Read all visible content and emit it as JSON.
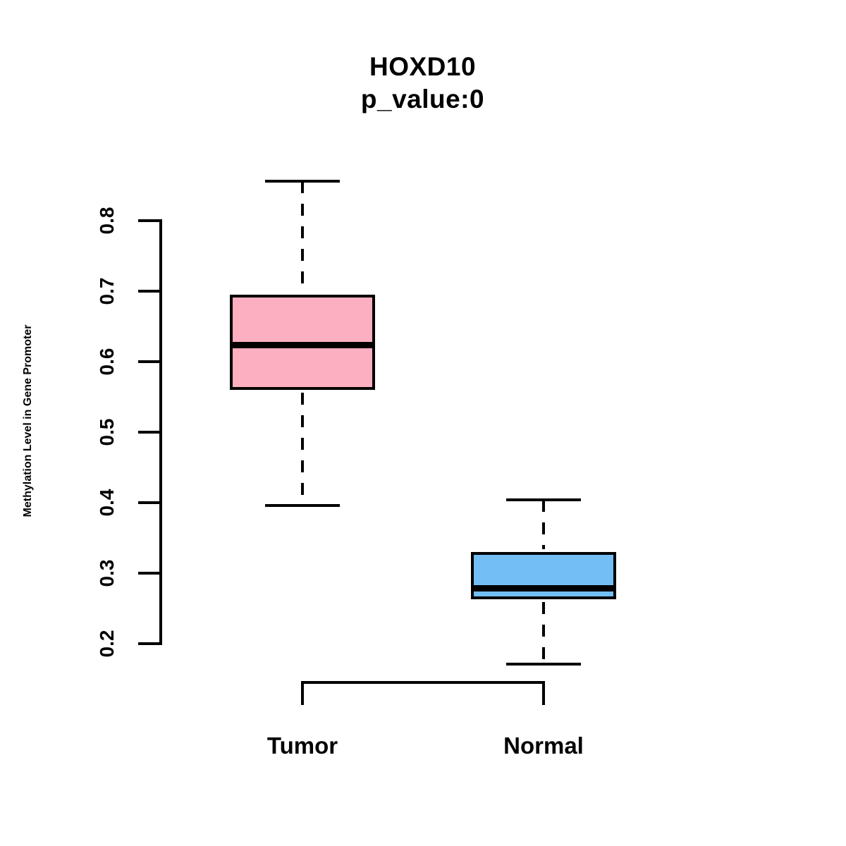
{
  "chart_data": {
    "type": "boxplot",
    "title": "HOXD10",
    "subtitle": "p_value:0",
    "ylabel": "Methylation Level in Gene Promoter",
    "xlabel": "",
    "categories": [
      "Tumor",
      "Normal"
    ],
    "yticks": [
      "0.2",
      "0.3",
      "0.4",
      "0.5",
      "0.6",
      "0.7",
      "0.8"
    ],
    "ylim": [
      0.2,
      0.8
    ],
    "grid": false,
    "legend": "none",
    "series": [
      {
        "name": "Tumor",
        "fill_color": "#FCAFC1",
        "border_color": "#000000",
        "whisker_low": 0.396,
        "q1": 0.56,
        "median": 0.624,
        "q3": 0.695,
        "whisker_high": 0.856
      },
      {
        "name": "Normal",
        "fill_color": "#73BEF5",
        "border_color": "#000000",
        "whisker_low": 0.171,
        "q1": 0.263,
        "median": 0.279,
        "q3": 0.33,
        "whisker_high": 0.404
      }
    ]
  }
}
